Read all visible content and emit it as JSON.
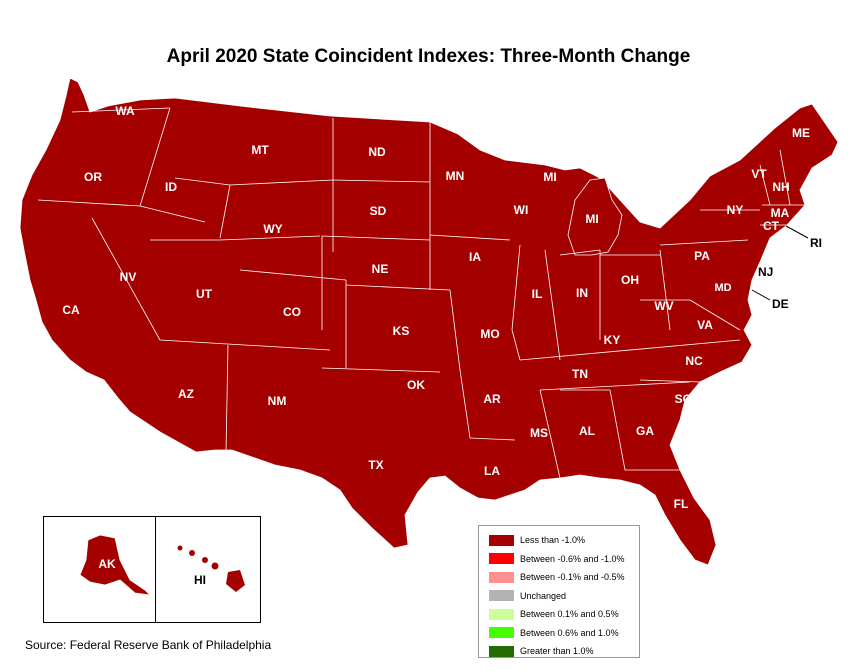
{
  "title": "April 2020 State Coincident Indexes: Three-Month Change",
  "source": "Source: Federal Reserve Bank of Philadelphia",
  "fill_color": "#a50000",
  "states": {
    "WA": "WA",
    "OR": "OR",
    "CA": "CA",
    "ID": "ID",
    "NV": "NV",
    "MT": "MT",
    "WY": "WY",
    "UT": "UT",
    "AZ": "AZ",
    "CO": "CO",
    "NM": "NM",
    "ND": "ND",
    "SD": "SD",
    "NE": "NE",
    "KS": "KS",
    "OK": "OK",
    "TX": "TX",
    "MN": "MN",
    "IA": "IA",
    "MO": "MO",
    "AR": "AR",
    "LA": "LA",
    "WI": "WI",
    "MI_UP": "MI",
    "MI": "MI",
    "IL": "IL",
    "IN": "IN",
    "OH": "OH",
    "KY": "KY",
    "TN": "TN",
    "MS": "MS",
    "AL": "AL",
    "GA": "GA",
    "FL": "FL",
    "SC": "SC",
    "NC": "NC",
    "VA": "VA",
    "WV": "WV",
    "PA": "PA",
    "NY": "NY",
    "VT": "VT",
    "NH": "NH",
    "ME": "ME",
    "MA": "MA",
    "CT": "CT",
    "RI": "RI",
    "NJ": "NJ",
    "DE": "DE",
    "MD": "MD",
    "AK": "AK",
    "HI": "HI"
  },
  "legend": [
    {
      "label": "Less than -1.0%",
      "color": "#a50000"
    },
    {
      "label": "Between -0.6% and -1.0%",
      "color": "#ff0000"
    },
    {
      "label": "Between -0.1% and -0.5%",
      "color": "#ff9090"
    },
    {
      "label": "Unchanged",
      "color": "#b3b3b3"
    },
    {
      "label": "Between 0.1% and 0.5%",
      "color": "#ccff99"
    },
    {
      "label": "Between 0.6% and 1.0%",
      "color": "#44ff00"
    },
    {
      "label": "Greater than 1.0%",
      "color": "#226b00"
    }
  ]
}
